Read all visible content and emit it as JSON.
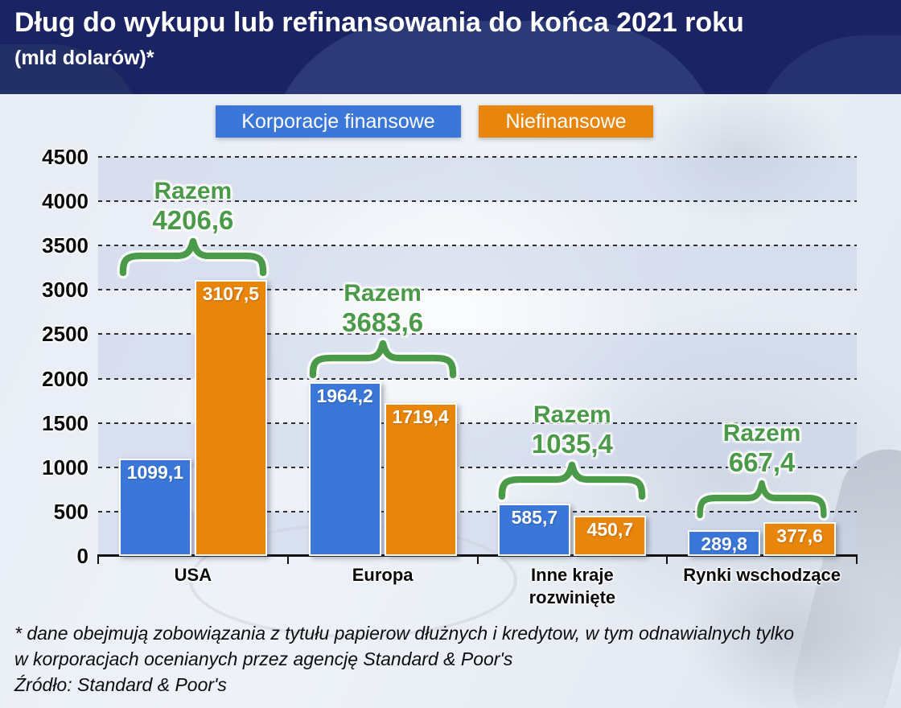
{
  "header": {
    "title": "Dług do wykupu lub refinansowania do końca 2021 roku",
    "subtitle": "(mld dolarów)*"
  },
  "legend": {
    "items": [
      {
        "label": "Korporacje finansowe",
        "color": "#3b77d8"
      },
      {
        "label": "Niefinansowe",
        "color": "#e8850b"
      }
    ]
  },
  "chart_data": {
    "type": "bar",
    "title": "Dług do wykupu lub refinansowania do końca 2021 roku",
    "subtitle": "(mld dolarów)*",
    "categories": [
      "USA",
      "Europa",
      "Inne kraje rozwinięte",
      "Rynki wschodzące"
    ],
    "series": [
      {
        "name": "Korporacje finansowe",
        "color": "#3b77d8",
        "values": [
          1099.1,
          1964.2,
          585.7,
          289.8
        ],
        "labels": [
          "1099,1",
          "1964,2",
          "585,7",
          "289,8"
        ]
      },
      {
        "name": "Niefinansowe",
        "color": "#e8850b",
        "values": [
          3107.5,
          1719.4,
          450.7,
          377.6
        ],
        "labels": [
          "3107,5",
          "1719,4",
          "450,7",
          "377,6"
        ]
      }
    ],
    "annotations": [
      {
        "label": "Razem",
        "value": 4206.6,
        "display": "4206,6"
      },
      {
        "label": "Razem",
        "value": 3683.6,
        "display": "3683,6"
      },
      {
        "label": "Razem",
        "value": 1035.4,
        "display": "1035,4"
      },
      {
        "label": "Razem",
        "value": 667.4,
        "display": "667,4"
      }
    ],
    "ylim": [
      0,
      4500
    ],
    "ytick_step": 500,
    "yticks": [
      "4500",
      "4000",
      "3500",
      "3000",
      "2500",
      "2000",
      "1500",
      "1000",
      "500",
      "0"
    ],
    "grid": "dashed-horizontal",
    "legend_position": "top",
    "annotation_color": "#4b9a49"
  },
  "footnote": {
    "note_line1": "* dane obejmują zobowiązania z tytułu papierow dłużnych i kredytow, w tym odnawialnych tylko",
    "note_line2": "w korporacjach ocenianych przez agencję Standard & Poor's",
    "source": "Źródło: Standard & Poor's"
  }
}
